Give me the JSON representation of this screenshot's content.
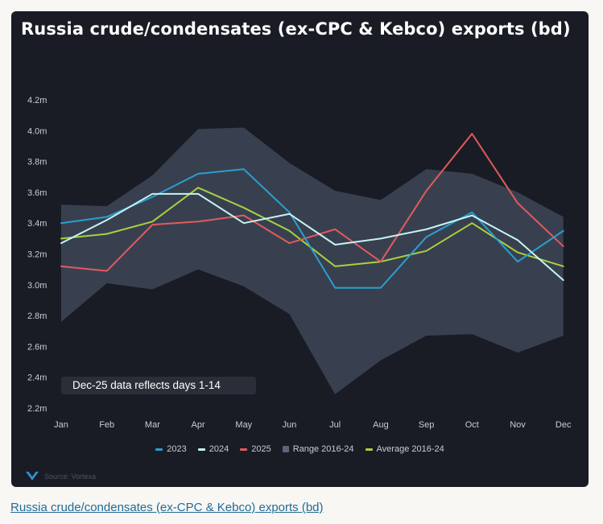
{
  "card": {
    "title": "Russia crude/condensates (ex-CPC & Kebco) exports (bd)"
  },
  "note": "Dec-25 data reflects days 1-14",
  "source_text": "Source: Vortexa",
  "caption": "Russia crude/condensates (ex-CPC & Kebco) exports (bd)",
  "colors": {
    "2023": "#2a9fd0",
    "2024": "#c5f4f4",
    "2025": "#e35a5a",
    "range": "#3a4252",
    "average": "#a8d13f",
    "background": "#191c25"
  },
  "chart_data": {
    "type": "line",
    "title": "Russia crude/condensates (ex-CPC & Kebco) exports (bd)",
    "xlabel": "",
    "ylabel": "",
    "ylim": [
      2.2,
      4.2
    ],
    "y_ticks": [
      2.2,
      2.4,
      2.6,
      2.8,
      3.0,
      3.2,
      3.4,
      3.6,
      3.8,
      4.0,
      4.2
    ],
    "y_tick_labels": [
      "2.2m",
      "2.4m",
      "2.6m",
      "2.8m",
      "3.0m",
      "3.2m",
      "3.4m",
      "3.6m",
      "3.8m",
      "4.0m",
      "4.2m"
    ],
    "categories": [
      "Jan",
      "Feb",
      "Mar",
      "Apr",
      "May",
      "Jun",
      "Jul",
      "Aug",
      "Sep",
      "Oct",
      "Nov",
      "Dec"
    ],
    "range": {
      "name": "Range 2016-24",
      "low": [
        2.76,
        3.01,
        2.97,
        3.1,
        2.99,
        2.81,
        2.29,
        2.51,
        2.67,
        2.68,
        2.56,
        2.67
      ],
      "high": [
        3.52,
        3.51,
        3.71,
        4.01,
        4.02,
        3.79,
        3.61,
        3.55,
        3.75,
        3.72,
        3.6,
        3.44
      ]
    },
    "series": [
      {
        "name": "Average 2016-24",
        "key": "average",
        "values": [
          3.3,
          3.33,
          3.41,
          3.63,
          3.5,
          3.35,
          3.12,
          3.15,
          3.22,
          3.4,
          3.21,
          3.12
        ]
      },
      {
        "name": "2025",
        "key": "2025",
        "values": [
          3.12,
          3.09,
          3.39,
          3.41,
          3.45,
          3.27,
          3.36,
          3.15,
          3.61,
          3.98,
          3.53,
          3.25
        ]
      },
      {
        "name": "2023",
        "key": "2023",
        "values": [
          3.4,
          3.44,
          3.57,
          3.72,
          3.75,
          3.47,
          2.98,
          2.98,
          3.31,
          3.47,
          3.15,
          3.35
        ]
      },
      {
        "name": "2024",
        "key": "2024",
        "values": [
          3.27,
          3.42,
          3.59,
          3.59,
          3.4,
          3.46,
          3.26,
          3.3,
          3.36,
          3.45,
          3.29,
          3.03
        ]
      }
    ],
    "legend": [
      {
        "label": "2023",
        "key": "2023",
        "kind": "line"
      },
      {
        "label": "2024",
        "key": "2024",
        "kind": "line"
      },
      {
        "label": "2025",
        "key": "2025",
        "kind": "line"
      },
      {
        "label": "Range 2016-24",
        "key": "range",
        "kind": "box"
      },
      {
        "label": "Average 2016-24",
        "key": "average",
        "kind": "line"
      }
    ],
    "grid": false,
    "legend_position": "bottom-center"
  }
}
